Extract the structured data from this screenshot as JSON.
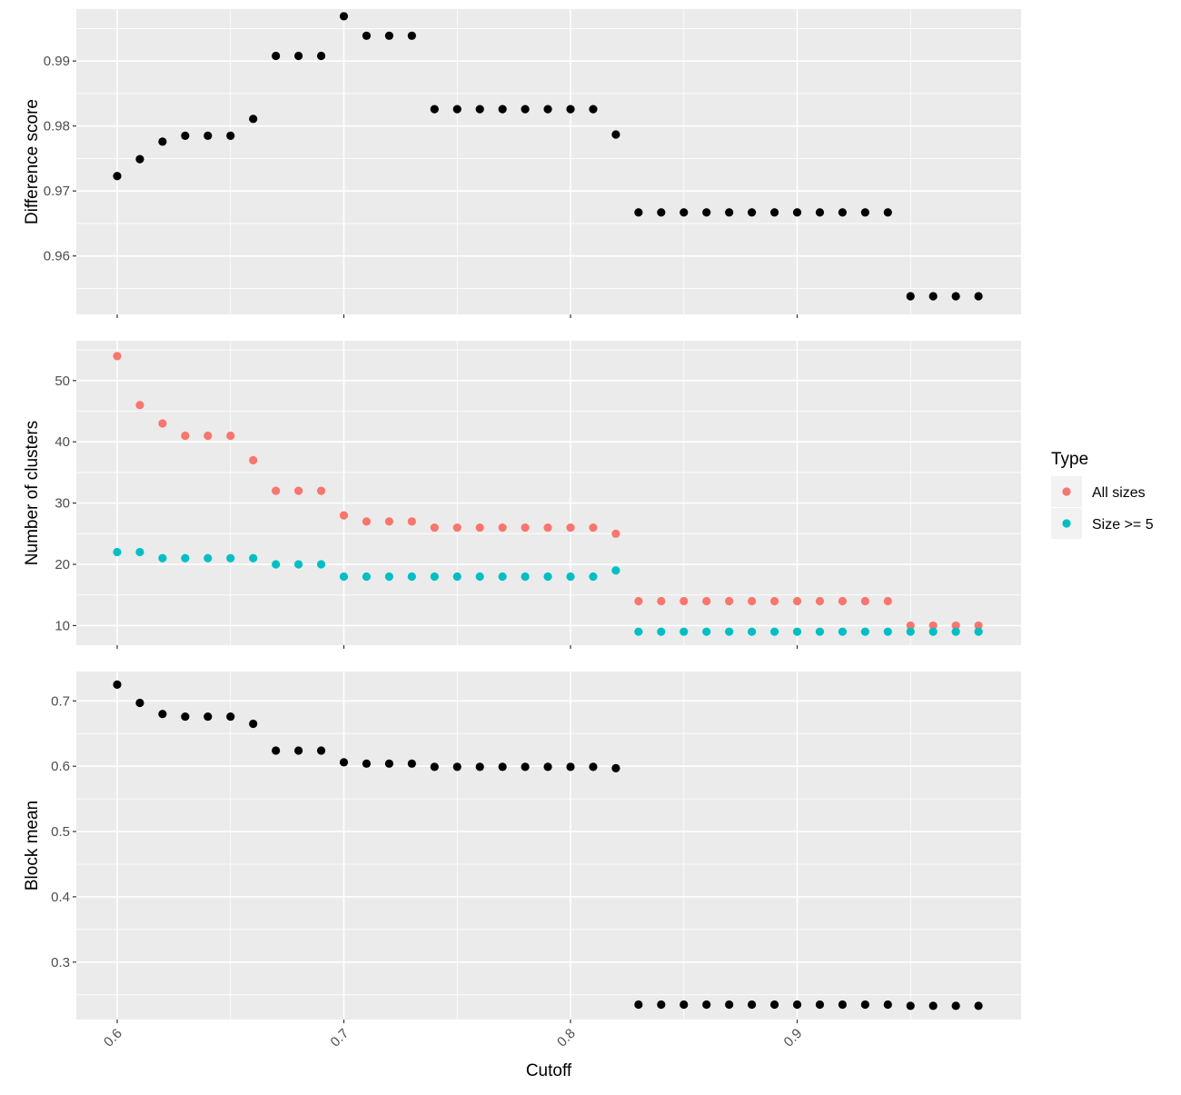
{
  "chart_data": {
    "type": "scatter",
    "layout": "faceted-vertical",
    "xlabel": "Cutoff",
    "xlim": [
      0.6,
      0.98
    ],
    "x_ticks": [
      0.6,
      0.7,
      0.8,
      0.9
    ],
    "x_tick_labels": [
      "0.6",
      "0.7",
      "0.8",
      "0.9"
    ],
    "x": [
      0.6,
      0.61,
      0.62,
      0.63,
      0.64,
      0.65,
      0.66,
      0.67,
      0.68,
      0.69,
      0.7,
      0.71,
      0.72,
      0.73,
      0.74,
      0.75,
      0.76,
      0.77,
      0.78,
      0.79,
      0.8,
      0.81,
      0.82,
      0.83,
      0.84,
      0.85,
      0.86,
      0.87,
      0.88,
      0.89,
      0.9,
      0.91,
      0.92,
      0.93,
      0.94,
      0.95,
      0.96,
      0.97,
      0.98
    ],
    "grid": true,
    "panel_background": "#ebebeb",
    "grid_color": "#ffffff",
    "legend_position": "right",
    "legend": {
      "title": "Type",
      "entries": [
        {
          "label": "All sizes",
          "color": "#f8766d"
        },
        {
          "label": "Size >= 5",
          "color": "#00bfc4"
        }
      ]
    },
    "panels": [
      {
        "ylabel": "Difference score",
        "ylim": [
          0.951,
          0.998
        ],
        "y_ticks": [
          0.96,
          0.97,
          0.98,
          0.99
        ],
        "y_tick_labels": [
          "0.96",
          "0.97",
          "0.98",
          "0.99"
        ],
        "series": [
          {
            "color": "#000000",
            "values": [
              0.9723,
              0.9749,
              0.9776,
              0.9785,
              0.9785,
              0.9785,
              0.9811,
              0.9908,
              0.9908,
              0.9908,
              0.9969,
              0.9939,
              0.9939,
              0.9939,
              0.9826,
              0.9826,
              0.9826,
              0.9826,
              0.9826,
              0.9826,
              0.9826,
              0.9826,
              0.9787,
              0.9667,
              0.9667,
              0.9667,
              0.9667,
              0.9667,
              0.9667,
              0.9667,
              0.9667,
              0.9667,
              0.9667,
              0.9667,
              0.9667,
              0.9538,
              0.9538,
              0.9538,
              0.9538
            ]
          }
        ]
      },
      {
        "ylabel": "Number of clusters",
        "ylim": [
          6.8,
          56.5
        ],
        "y_ticks": [
          10,
          20,
          30,
          40,
          50
        ],
        "y_tick_labels": [
          "10",
          "20",
          "30",
          "40",
          "50"
        ],
        "series": [
          {
            "name": "All sizes",
            "color": "#f8766d",
            "values": [
              54,
              46,
              43,
              41,
              41,
              41,
              37,
              32,
              32,
              32,
              28,
              27,
              27,
              27,
              26,
              26,
              26,
              26,
              26,
              26,
              26,
              26,
              25,
              14,
              14,
              14,
              14,
              14,
              14,
              14,
              14,
              14,
              14,
              14,
              14,
              10,
              10,
              10,
              10
            ]
          },
          {
            "name": "Size >= 5",
            "color": "#00bfc4",
            "values": [
              22,
              22,
              21,
              21,
              21,
              21,
              21,
              20,
              20,
              20,
              18,
              18,
              18,
              18,
              18,
              18,
              18,
              18,
              18,
              18,
              18,
              18,
              19,
              9,
              9,
              9,
              9,
              9,
              9,
              9,
              9,
              9,
              9,
              9,
              9,
              9,
              9,
              9,
              9
            ]
          }
        ]
      },
      {
        "ylabel": "Block mean",
        "ylim": [
          0.212,
          0.745
        ],
        "y_ticks": [
          0.3,
          0.4,
          0.5,
          0.6,
          0.7
        ],
        "y_tick_labels": [
          "0.3",
          "0.4",
          "0.5",
          "0.6",
          "0.7"
        ],
        "series": [
          {
            "color": "#000000",
            "values": [
              0.725,
              0.697,
              0.68,
              0.676,
              0.676,
              0.676,
              0.665,
              0.624,
              0.624,
              0.624,
              0.606,
              0.604,
              0.604,
              0.604,
              0.599,
              0.599,
              0.599,
              0.599,
              0.599,
              0.599,
              0.599,
              0.599,
              0.597,
              0.235,
              0.235,
              0.235,
              0.235,
              0.235,
              0.235,
              0.235,
              0.235,
              0.235,
              0.235,
              0.235,
              0.235,
              0.233,
              0.233,
              0.233,
              0.233
            ]
          }
        ]
      }
    ]
  }
}
